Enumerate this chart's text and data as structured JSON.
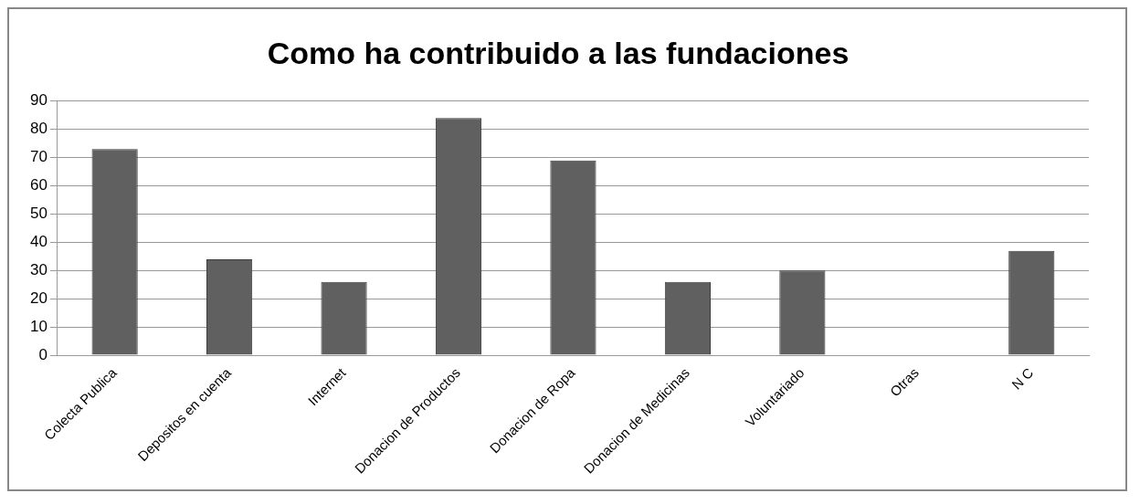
{
  "chart_data": {
    "type": "bar",
    "title": "Como ha contribuido a las fundaciones",
    "categories": [
      "Colecta Publica",
      "Depositos en cuenta",
      "Internet",
      "Donacion de Productos",
      "Donacion de Ropa",
      "Donacion de Medicinas",
      "Voluntariado",
      "Otras",
      "N C"
    ],
    "values": [
      73,
      34,
      26,
      84,
      69,
      26,
      30,
      0,
      37
    ],
    "color": "#606060",
    "ylim": [
      0,
      90
    ],
    "yticks": [
      0,
      10,
      20,
      30,
      40,
      50,
      60,
      70,
      80,
      90
    ],
    "grid": "y",
    "legend": false
  }
}
